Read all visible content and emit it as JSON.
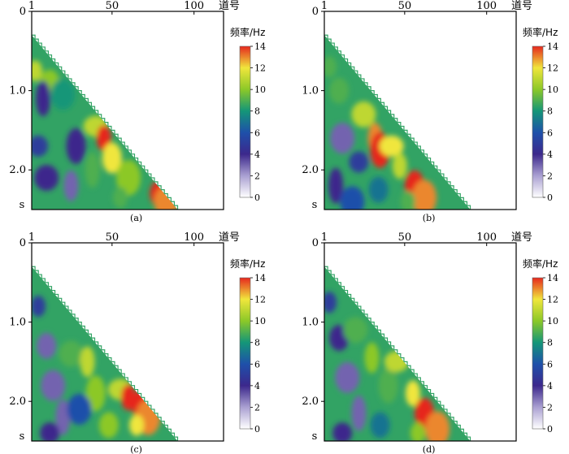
{
  "chart_data": [
    {
      "type": "heatmap",
      "panel_label": "(a)",
      "x_ticks": [
        "1",
        "50",
        "100"
      ],
      "x_tick_values": [
        1,
        50,
        100
      ],
      "xlabel": "道号",
      "y_ticks": [
        "0",
        "1.0",
        "2.0"
      ],
      "y_tick_values": [
        0,
        1.0,
        2.0
      ],
      "y_unit": "s",
      "xlim": [
        1,
        118
      ],
      "ylim": [
        0,
        2.5
      ],
      "wedge": {
        "top_trace": 1,
        "top_time": 0.3,
        "bottom_trace": 90,
        "bottom_time": 2.5
      },
      "colorbar": {
        "title": "频率/Hz",
        "ticks": [
          "14",
          "12",
          "10",
          "8",
          "6",
          "4",
          "2",
          "0"
        ],
        "tick_values": [
          14,
          12,
          10,
          8,
          6,
          4,
          2,
          0
        ],
        "range": [
          0,
          14
        ]
      },
      "features": [
        {
          "trace": 3,
          "time": 0.75,
          "freq": 11
        },
        {
          "trace": 12,
          "time": 0.9,
          "freq": 10
        },
        {
          "trace": 20,
          "time": 1.05,
          "freq": 8
        },
        {
          "trace": 8,
          "time": 1.1,
          "freq": 4
        },
        {
          "trace": 5,
          "time": 1.7,
          "freq": 5
        },
        {
          "trace": 10,
          "time": 2.1,
          "freq": 4
        },
        {
          "trace": 25,
          "time": 2.2,
          "freq": 3
        },
        {
          "trace": 28,
          "time": 1.7,
          "freq": 4
        },
        {
          "trace": 40,
          "time": 1.45,
          "freq": 11
        },
        {
          "trace": 45,
          "time": 1.6,
          "freq": 14
        },
        {
          "trace": 50,
          "time": 1.85,
          "freq": 12
        },
        {
          "trace": 60,
          "time": 2.1,
          "freq": 10
        },
        {
          "trace": 55,
          "time": 2.35,
          "freq": 9
        },
        {
          "trace": 79,
          "time": 2.3,
          "freq": 14
        },
        {
          "trace": 83,
          "time": 2.4,
          "freq": 13
        },
        {
          "trace": 38,
          "time": 2.0,
          "freq": 9
        }
      ]
    },
    {
      "type": "heatmap",
      "panel_label": "(b)",
      "x_ticks": [
        "1",
        "50",
        "100"
      ],
      "x_tick_values": [
        1,
        50,
        100
      ],
      "xlabel": "道号",
      "y_ticks": [
        "0",
        "1.0",
        "2.0"
      ],
      "y_tick_values": [
        0,
        1.0,
        2.0
      ],
      "y_unit": "s",
      "xlim": [
        1,
        118
      ],
      "ylim": [
        0,
        2.5
      ],
      "wedge": {
        "top_trace": 1,
        "top_time": 0.3,
        "bottom_trace": 90,
        "bottom_time": 2.5
      },
      "colorbar": {
        "title": "频率/Hz",
        "ticks": [
          "14",
          "12",
          "10",
          "8",
          "6",
          "4",
          "2",
          "0"
        ],
        "tick_values": [
          14,
          12,
          10,
          8,
          6,
          4,
          2,
          0
        ],
        "range": [
          0,
          14
        ]
      },
      "features": [
        {
          "trace": 4,
          "time": 0.7,
          "freq": 9
        },
        {
          "trace": 10,
          "time": 1.0,
          "freq": 9
        },
        {
          "trace": 12,
          "time": 1.6,
          "freq": 3
        },
        {
          "trace": 8,
          "time": 2.2,
          "freq": 4
        },
        {
          "trace": 22,
          "time": 1.9,
          "freq": 5
        },
        {
          "trace": 25,
          "time": 1.3,
          "freq": 11
        },
        {
          "trace": 32,
          "time": 1.6,
          "freq": 13
        },
        {
          "trace": 35,
          "time": 1.75,
          "freq": 14
        },
        {
          "trace": 42,
          "time": 1.7,
          "freq": 12
        },
        {
          "trace": 47,
          "time": 1.95,
          "freq": 11
        },
        {
          "trace": 56,
          "time": 2.2,
          "freq": 14
        },
        {
          "trace": 62,
          "time": 2.35,
          "freq": 13
        },
        {
          "trace": 52,
          "time": 2.4,
          "freq": 9
        },
        {
          "trace": 34,
          "time": 2.25,
          "freq": 7
        },
        {
          "trace": 18,
          "time": 2.4,
          "freq": 6
        }
      ]
    },
    {
      "type": "heatmap",
      "panel_label": "(c)",
      "x_ticks": [
        "1",
        "50",
        "100"
      ],
      "x_tick_values": [
        1,
        50,
        100
      ],
      "xlabel": "道号",
      "y_ticks": [
        "0",
        "1.0",
        "2.0"
      ],
      "y_tick_values": [
        0,
        1.0,
        2.0
      ],
      "y_unit": "s",
      "xlim": [
        1,
        118
      ],
      "ylim": [
        0,
        2.5
      ],
      "wedge": {
        "top_trace": 1,
        "top_time": 0.3,
        "bottom_trace": 90,
        "bottom_time": 2.5
      },
      "colorbar": {
        "title": "频率/Hz",
        "ticks": [
          "14",
          "12",
          "10",
          "8",
          "6",
          "4",
          "2",
          "0"
        ],
        "tick_values": [
          14,
          12,
          10,
          8,
          6,
          4,
          2,
          0
        ],
        "range": [
          0,
          14
        ]
      },
      "features": [
        {
          "trace": 5,
          "time": 0.8,
          "freq": 5
        },
        {
          "trace": 10,
          "time": 1.3,
          "freq": 3
        },
        {
          "trace": 14,
          "time": 1.8,
          "freq": 3
        },
        {
          "trace": 20,
          "time": 2.2,
          "freq": 3
        },
        {
          "trace": 12,
          "time": 2.4,
          "freq": 4
        },
        {
          "trace": 25,
          "time": 1.4,
          "freq": 9
        },
        {
          "trace": 35,
          "time": 1.5,
          "freq": 11
        },
        {
          "trace": 40,
          "time": 1.9,
          "freq": 10
        },
        {
          "trace": 55,
          "time": 1.85,
          "freq": 11
        },
        {
          "trace": 60,
          "time": 1.95,
          "freq": 14
        },
        {
          "trace": 68,
          "time": 2.05,
          "freq": 14
        },
        {
          "trace": 72,
          "time": 2.2,
          "freq": 13
        },
        {
          "trace": 65,
          "time": 2.3,
          "freq": 12
        },
        {
          "trace": 48,
          "time": 2.3,
          "freq": 10
        },
        {
          "trace": 30,
          "time": 2.1,
          "freq": 6
        }
      ]
    },
    {
      "type": "heatmap",
      "panel_label": "(d)",
      "x_ticks": [
        "1",
        "50",
        "100"
      ],
      "x_tick_values": [
        1,
        50,
        100
      ],
      "xlabel": "道号",
      "y_ticks": [
        "0",
        "1.0",
        "2.0"
      ],
      "y_tick_values": [
        0,
        1.0,
        2.0
      ],
      "y_unit": "s",
      "xlim": [
        1,
        118
      ],
      "ylim": [
        0,
        2.5
      ],
      "wedge": {
        "top_trace": 1,
        "top_time": 0.3,
        "bottom_trace": 90,
        "bottom_time": 2.5
      },
      "colorbar": {
        "title": "频率/Hz",
        "ticks": [
          "14",
          "12",
          "10",
          "8",
          "6",
          "4",
          "2",
          "0"
        ],
        "tick_values": [
          14,
          12,
          10,
          8,
          6,
          4,
          2,
          0
        ],
        "range": [
          0,
          14
        ]
      },
      "features": [
        {
          "trace": 4,
          "time": 0.75,
          "freq": 5
        },
        {
          "trace": 10,
          "time": 1.2,
          "freq": 4
        },
        {
          "trace": 15,
          "time": 1.7,
          "freq": 3
        },
        {
          "trace": 22,
          "time": 2.15,
          "freq": 3
        },
        {
          "trace": 12,
          "time": 2.4,
          "freq": 4
        },
        {
          "trace": 20,
          "time": 1.1,
          "freq": 9
        },
        {
          "trace": 30,
          "time": 1.45,
          "freq": 10
        },
        {
          "trace": 40,
          "time": 1.8,
          "freq": 9
        },
        {
          "trace": 45,
          "time": 1.5,
          "freq": 11
        },
        {
          "trace": 55,
          "time": 1.9,
          "freq": 12
        },
        {
          "trace": 62,
          "time": 2.15,
          "freq": 14
        },
        {
          "trace": 70,
          "time": 2.35,
          "freq": 13
        },
        {
          "trace": 58,
          "time": 2.4,
          "freq": 10
        },
        {
          "trace": 35,
          "time": 2.3,
          "freq": 7
        }
      ]
    }
  ]
}
